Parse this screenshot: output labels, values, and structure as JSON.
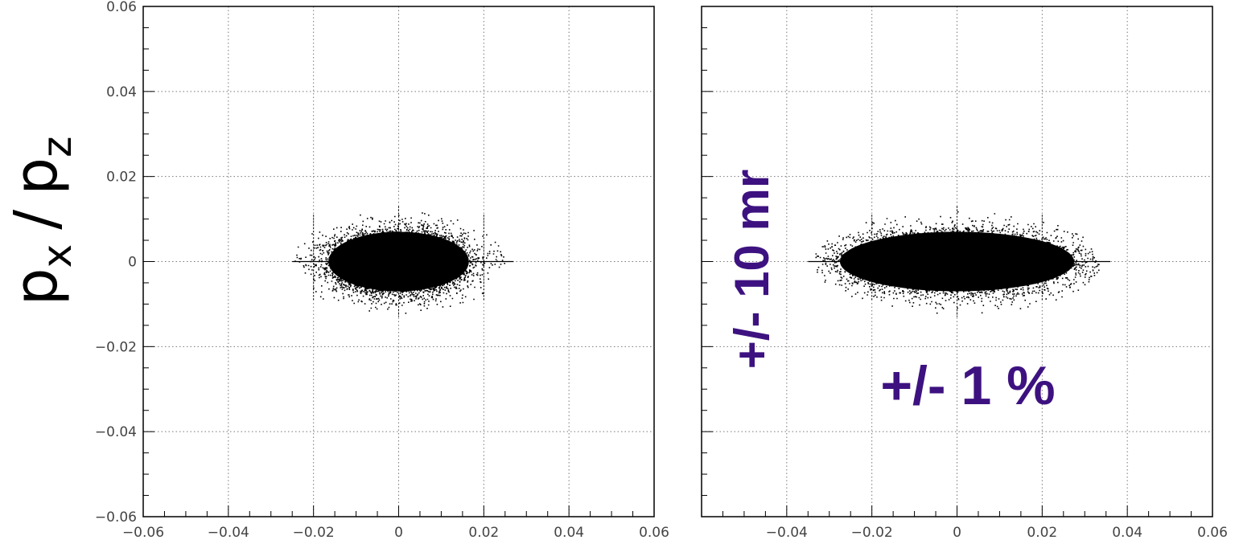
{
  "y_axis_label": {
    "main_p": "p",
    "sub_x": "x",
    "slash": "/",
    "main_p2": "p",
    "sub_z": "z"
  },
  "annotations": {
    "vertical": "+/- 10 mr",
    "horizontal": "+/- 1 %"
  },
  "colors": {
    "points": "#000000",
    "annotation": "#3d1280",
    "grid": "#777777",
    "frame": "#000000"
  },
  "chart_data": [
    {
      "type": "scatter",
      "panel": "left",
      "title": "",
      "xlabel": "",
      "ylabel": "p_x / p_z",
      "xlim": [
        -0.06,
        0.06
      ],
      "ylim": [
        -0.06,
        0.06
      ],
      "x_ticks": [
        "−0.06",
        "−0.04",
        "−0.02",
        "0",
        "0.02",
        "0.04",
        "0.06"
      ],
      "y_ticks": [
        "0.06",
        "0.04",
        "0.02",
        "0",
        "−0.02",
        "−0.04",
        "−0.06"
      ],
      "grid": true,
      "distribution": {
        "center": [
          0.0,
          0.0
        ],
        "x_sigma": 0.0075,
        "y_sigma": 0.0035,
        "x_extent": [
          -0.025,
          0.027
        ],
        "y_extent": [
          -0.012,
          0.012
        ],
        "n_points_approx": 30000
      }
    },
    {
      "type": "scatter",
      "panel": "right",
      "title": "",
      "xlabel": "",
      "ylabel": "",
      "xlim": [
        -0.06,
        0.06
      ],
      "ylim": [
        -0.06,
        0.06
      ],
      "x_ticks": [
        "−0.04",
        "−0.02",
        "0",
        "0.02",
        "0.04",
        "0.06"
      ],
      "y_ticks": [],
      "grid": true,
      "distribution": {
        "center": [
          0.0,
          0.0
        ],
        "x_sigma": 0.0125,
        "y_sigma": 0.0035,
        "x_extent": [
          -0.035,
          0.036
        ],
        "y_extent": [
          -0.012,
          0.012
        ],
        "n_points_approx": 30000
      }
    }
  ]
}
